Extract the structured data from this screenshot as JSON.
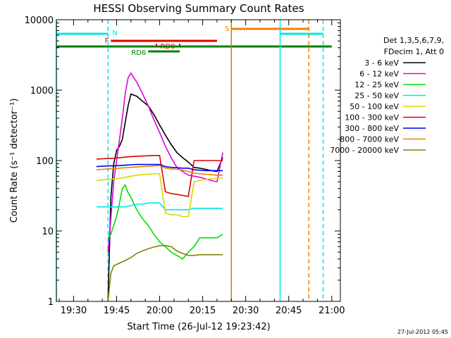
{
  "chart_data": {
    "type": "line",
    "title": "HESSI Observing Summary Count Rates",
    "xlabel": "Start Time (26-Jul-12 19:23:42)",
    "ylabel": "Count Rate (s⁻¹ detector⁻¹)",
    "yscale": "log",
    "ylim": [
      1,
      10000
    ],
    "xlim_minutes_since_19_00": [
      24,
      123
    ],
    "x_tick_labels": [
      "19:30",
      "19:45",
      "20:00",
      "20:15",
      "20:30",
      "20:45",
      "21:00"
    ],
    "y_tick_labels": [
      "1",
      "10",
      "100",
      "1000",
      "10000"
    ],
    "timestamp": "27-Jul-2012 05:45",
    "legend_header": [
      "Det 1,3,5,6,7,9,",
      "FDecim 1, Att 0"
    ],
    "legend_placement": "right",
    "series": [
      {
        "name": "3 - 6 keV",
        "color": "#000000",
        "x": [
          "19:42",
          "19:43",
          "19:44",
          "19:45",
          "19:46",
          "19:47",
          "19:48",
          "19:49",
          "19:50",
          "19:52",
          "19:54",
          "19:56",
          "19:58",
          "20:00",
          "20:02",
          "20:04",
          "20:06",
          "20:08",
          "20:10",
          "20:12",
          "20:14",
          "20:16",
          "20:18",
          "20:20",
          "20:22"
        ],
        "y": [
          1,
          30,
          90,
          140,
          160,
          200,
          350,
          600,
          880,
          820,
          700,
          600,
          450,
          320,
          230,
          170,
          130,
          110,
          95,
          80,
          78,
          75,
          72,
          70,
          110
        ]
      },
      {
        "name": "6 - 12 keV",
        "color": "#e000e0",
        "x": [
          "19:42",
          "19:43",
          "19:44",
          "19:45",
          "19:46",
          "19:47",
          "19:48",
          "19:49",
          "19:50",
          "19:51",
          "19:52",
          "19:54",
          "19:56",
          "19:58",
          "20:00",
          "20:02",
          "20:04",
          "20:06",
          "20:08",
          "20:10",
          "20:12",
          "20:14",
          "20:16",
          "20:18",
          "20:20",
          "20:22"
        ],
        "y": [
          5,
          15,
          50,
          100,
          200,
          400,
          900,
          1500,
          1750,
          1500,
          1300,
          900,
          600,
          380,
          250,
          160,
          110,
          80,
          70,
          62,
          60,
          58,
          55,
          52,
          50,
          130
        ]
      },
      {
        "name": "12 - 25 keV",
        "color": "#00dd00",
        "x": [
          "19:42",
          "19:43",
          "19:44",
          "19:45",
          "19:46",
          "19:47",
          "19:48",
          "19:49",
          "19:50",
          "19:52",
          "19:54",
          "19:56",
          "19:58",
          "20:00",
          "20:02",
          "20:04",
          "20:06",
          "20:08",
          "20:10",
          "20:12",
          "20:14",
          "20:16",
          "20:18",
          "20:20",
          "20:22"
        ],
        "y": [
          8,
          9,
          12,
          16,
          25,
          40,
          45,
          35,
          30,
          20,
          15,
          12,
          9,
          7,
          6,
          5,
          4.5,
          4,
          5,
          6,
          8,
          8,
          8,
          8,
          9
        ]
      },
      {
        "name": "25 - 50 keV",
        "color": "#00e8e8",
        "x": [
          "19:38",
          "19:40",
          "19:42",
          "19:44",
          "19:46",
          "19:48",
          "19:50",
          "19:52",
          "19:54",
          "19:56",
          "19:58",
          "20:00",
          "20:02",
          "20:04",
          "20:06",
          "20:08",
          "20:10",
          "20:12",
          "20:14",
          "20:16",
          "20:18",
          "20:20",
          "20:22"
        ],
        "y": [
          22,
          22,
          22,
          22,
          22,
          22,
          23,
          24,
          24,
          25,
          25,
          25,
          20,
          20,
          20,
          20,
          20,
          21,
          21,
          21,
          21,
          21,
          21
        ]
      },
      {
        "name": "50 - 100 keV",
        "color": "#d8d800",
        "x": [
          "19:38",
          "19:40",
          "19:42",
          "19:44",
          "19:46",
          "19:48",
          "19:50",
          "19:52",
          "19:54",
          "19:56",
          "19:58",
          "20:00",
          "20:02",
          "20:04",
          "20:06",
          "20:08",
          "20:10",
          "20:12",
          "20:14",
          "20:16",
          "20:18",
          "20:20",
          "20:22"
        ],
        "y": [
          52,
          53,
          54,
          55,
          56,
          58,
          60,
          62,
          63,
          64,
          65,
          65,
          18,
          17,
          17,
          16,
          16,
          50,
          52,
          54,
          55,
          56,
          57
        ]
      },
      {
        "name": "100 - 300 keV",
        "color": "#e00000",
        "x": [
          "19:38",
          "19:40",
          "19:42",
          "19:44",
          "19:46",
          "19:48",
          "19:50",
          "19:52",
          "19:54",
          "19:56",
          "19:58",
          "20:00",
          "20:02",
          "20:04",
          "20:06",
          "20:08",
          "20:10",
          "20:12",
          "20:14",
          "20:16",
          "20:18",
          "20:20",
          "20:22"
        ],
        "y": [
          105,
          106,
          107,
          108,
          110,
          112,
          114,
          115,
          116,
          117,
          118,
          118,
          36,
          34,
          33,
          32,
          31,
          100,
          100,
          100,
          100,
          100,
          100
        ]
      },
      {
        "name": "300 - 800 keV",
        "color": "#0000ee",
        "x": [
          "19:38",
          "19:40",
          "19:42",
          "19:44",
          "19:46",
          "19:48",
          "19:50",
          "19:52",
          "19:54",
          "19:56",
          "19:58",
          "20:00",
          "20:02",
          "20:04",
          "20:06",
          "20:08",
          "20:10",
          "20:12",
          "20:14",
          "20:16",
          "20:18",
          "20:20",
          "20:22"
        ],
        "y": [
          82,
          83,
          84,
          84,
          85,
          86,
          87,
          88,
          88,
          88,
          88,
          88,
          82,
          80,
          79,
          78,
          78,
          74,
          73,
          72,
          72,
          72,
          72
        ]
      },
      {
        "name": "800 - 7000 keV",
        "color": "#f08000",
        "x": [
          "19:38",
          "19:40",
          "19:42",
          "19:44",
          "19:46",
          "19:48",
          "19:50",
          "19:52",
          "19:54",
          "19:56",
          "19:58",
          "20:00",
          "20:02",
          "20:04",
          "20:06",
          "20:08",
          "20:10",
          "20:12",
          "20:14",
          "20:16",
          "20:18",
          "20:20",
          "20:22"
        ],
        "y": [
          74,
          75,
          76,
          77,
          78,
          79,
          80,
          81,
          82,
          83,
          84,
          85,
          78,
          76,
          75,
          73,
          70,
          66,
          65,
          64,
          63,
          62,
          62
        ]
      },
      {
        "name": "7000 - 20000 keV",
        "color": "#808000",
        "x": [
          "19:42",
          "19:43",
          "19:44",
          "19:46",
          "19:48",
          "19:50",
          "19:52",
          "19:54",
          "19:56",
          "19:58",
          "20:00",
          "20:02",
          "20:04",
          "20:06",
          "20:08",
          "20:10",
          "20:12",
          "20:14",
          "20:16",
          "20:18",
          "20:20",
          "20:22"
        ],
        "y": [
          1,
          2.5,
          3.2,
          3.5,
          3.8,
          4.2,
          4.8,
          5.2,
          5.6,
          5.9,
          6.2,
          6.2,
          6.0,
          5.2,
          4.8,
          4.5,
          4.5,
          4.6,
          4.6,
          4.6,
          4.6,
          4.6
        ]
      }
    ],
    "flag_bars": [
      {
        "label": "N",
        "color": "#00e8e8",
        "segments": [
          [
            "19:24",
            "19:42"
          ],
          [
            "20:42",
            "20:57"
          ]
        ]
      },
      {
        "label": "S",
        "color": "#f08000",
        "segments": [
          [
            "20:25",
            "20:52"
          ]
        ]
      },
      {
        "label": "F",
        "color": "#e00000",
        "segments": [
          [
            "19:43",
            "20:20"
          ]
        ]
      },
      {
        "label": "RD0",
        "color": "#e00000",
        "segments": []
      },
      {
        "label": "RD6",
        "color": "#008000",
        "segments": [
          [
            "19:56",
            "20:07"
          ]
        ]
      },
      {
        "label": "",
        "color": "#008000",
        "segments": [
          [
            "19:24",
            "21:00"
          ]
        ]
      }
    ],
    "vertical_markers": [
      {
        "x": "19:24",
        "color": "#00e8e8",
        "style": "solid"
      },
      {
        "x": "19:42",
        "color": "#00e8e8",
        "style": "dashed"
      },
      {
        "x": "20:25",
        "color": "#c08000",
        "style": "solid"
      },
      {
        "x": "20:42",
        "color": "#00e8e8",
        "style": "solid"
      },
      {
        "x": "20:52",
        "color": "#f08000",
        "style": "dashed"
      },
      {
        "x": "20:57",
        "color": "#00e8e8",
        "style": "dashed"
      }
    ]
  }
}
